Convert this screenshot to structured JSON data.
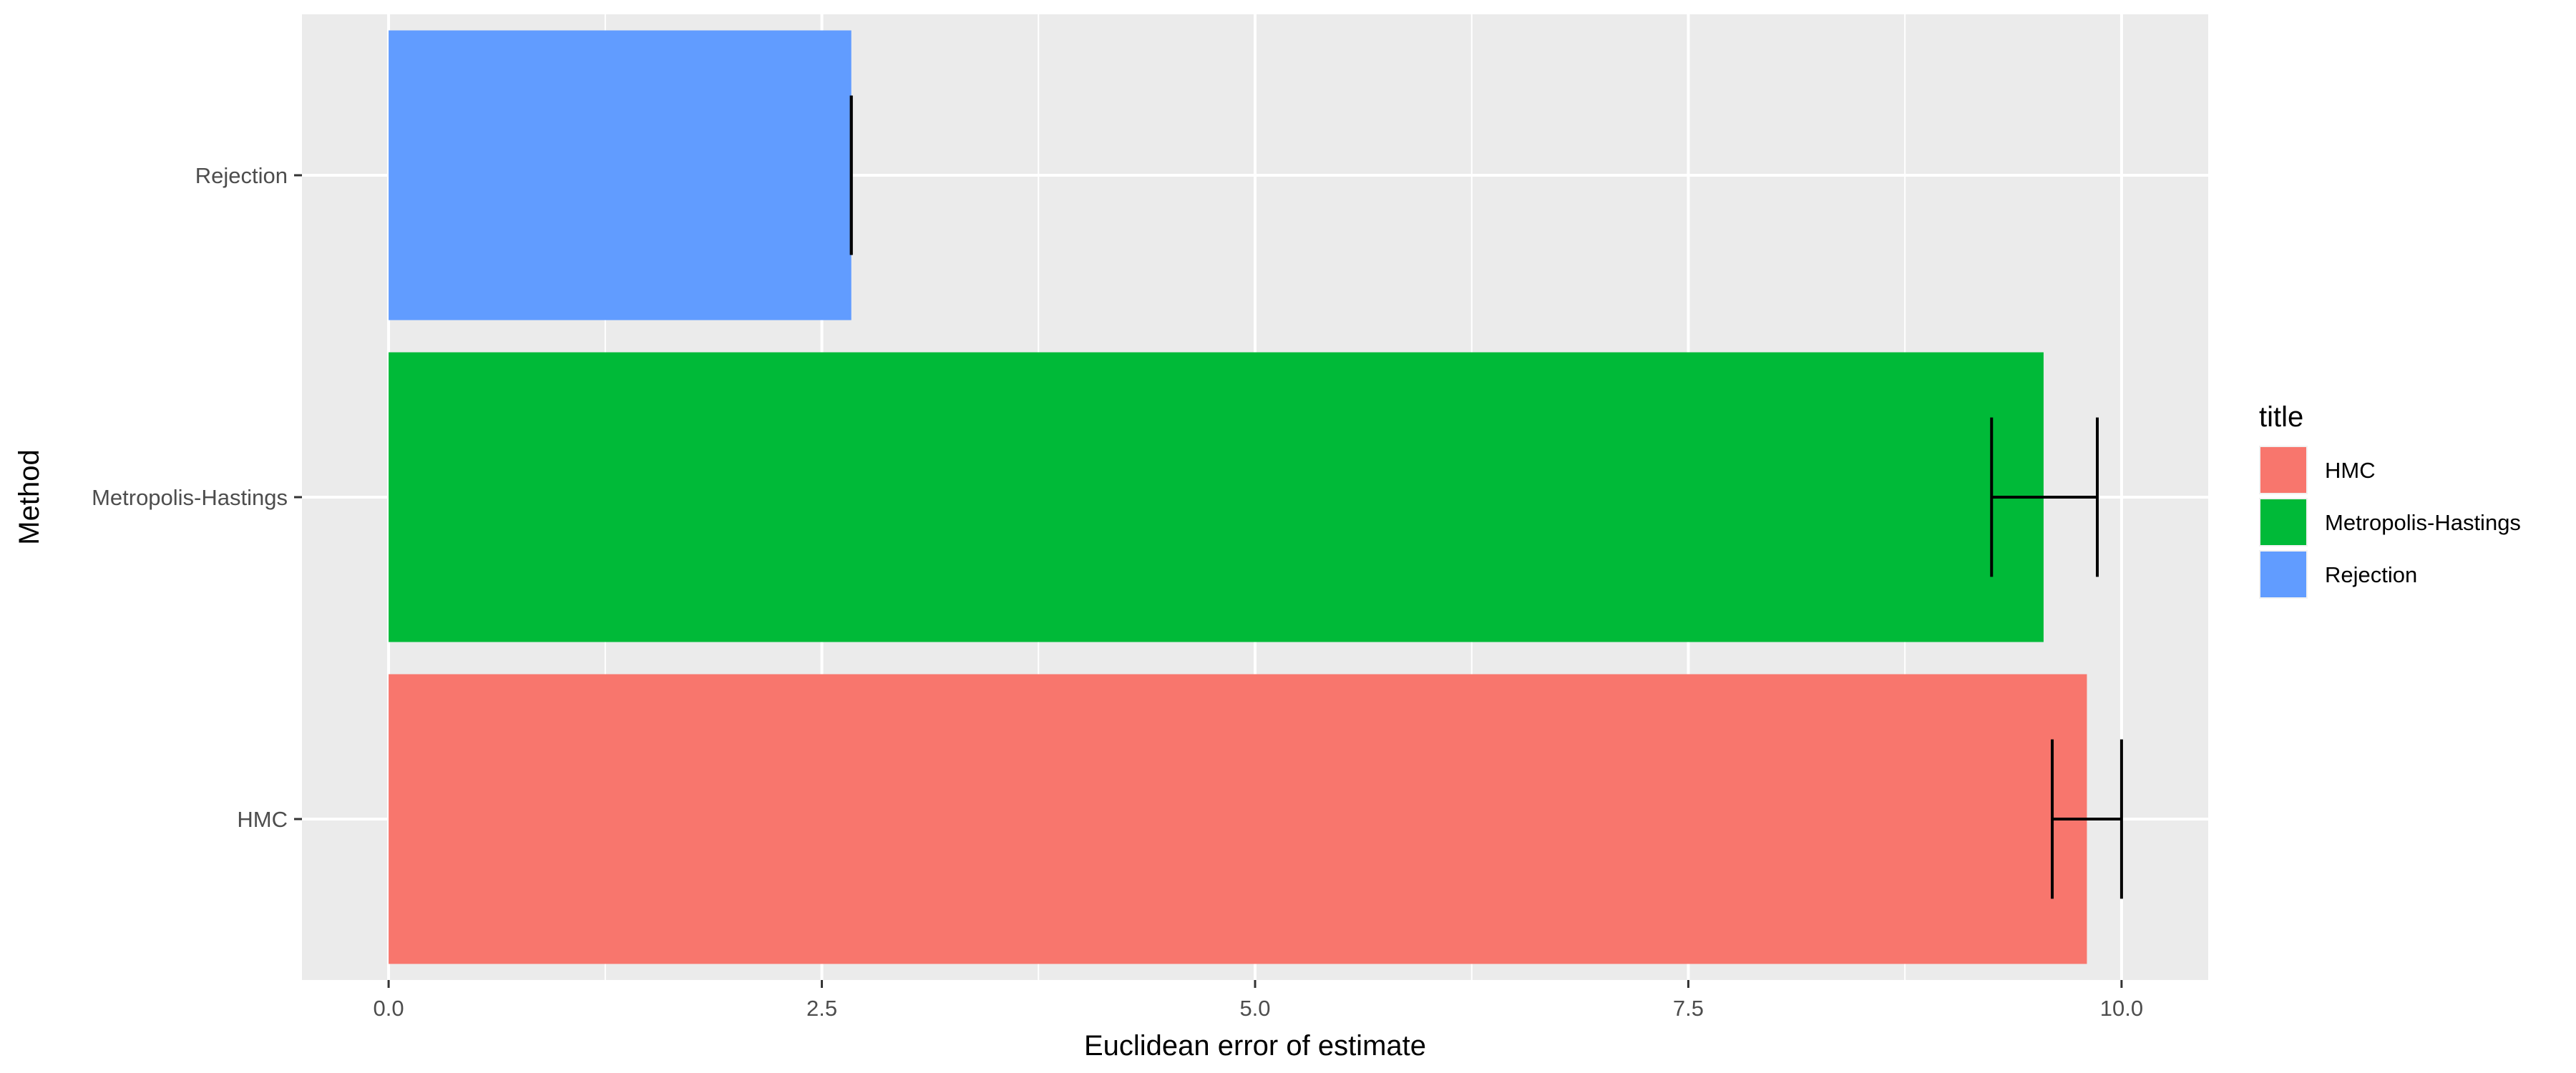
{
  "chart_data": {
    "type": "bar",
    "orientation": "horizontal",
    "categories": [
      "HMC",
      "Metropolis-Hastings",
      "Rejection"
    ],
    "values": [
      9.8,
      9.55,
      2.67
    ],
    "error_bars": [
      {
        "low": 9.6,
        "high": 10.0
      },
      {
        "low": 9.25,
        "high": 9.86
      },
      {
        "low": 2.67,
        "high": 2.67
      }
    ],
    "colors": [
      "#F8766D",
      "#00BA38",
      "#619CFF"
    ],
    "xlabel": "Euclidean error of estimate",
    "ylabel": "Method",
    "xlim": [
      -0.5,
      10.5
    ],
    "xticks": [
      "0.0",
      "2.5",
      "5.0",
      "7.5",
      "10.0"
    ],
    "xtick_values": [
      0,
      2.5,
      5,
      7.5,
      10
    ],
    "grid": true,
    "panel_background": "#EBEBEB",
    "legend": {
      "title": "title",
      "position": "right",
      "entries": [
        "HMC",
        "Metropolis-Hastings",
        "Rejection"
      ]
    }
  }
}
